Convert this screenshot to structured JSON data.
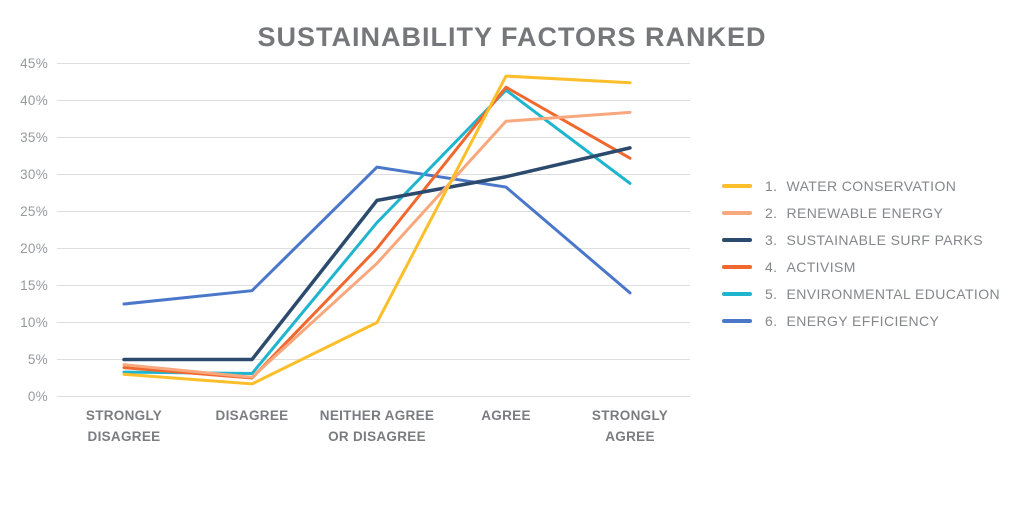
{
  "title": "SUSTAINABILITY FACTORS RANKED",
  "chart_data": {
    "type": "line",
    "title": "SUSTAINABILITY FACTORS RANKED",
    "xlabel": "",
    "ylabel": "",
    "ylim": [
      0,
      45
    ],
    "y_tick_step": 5,
    "y_tick_labels": [
      "0%",
      "5%",
      "10%",
      "15%",
      "20%",
      "25%",
      "30%",
      "35%",
      "40%",
      "45%"
    ],
    "grid": true,
    "legend_position": "right",
    "categories": [
      "STRONGLY DISAGREE",
      "DISAGREE",
      "NEITHER AGREE OR DISAGREE",
      "AGREE",
      "STRONGLY AGREE"
    ],
    "x_tick_lines": [
      [
        "STRONGLY",
        "DISAGREE"
      ],
      [
        "DISAGREE"
      ],
      [
        "NEITHER AGREE",
        "OR DISAGREE"
      ],
      [
        "AGREE"
      ],
      [
        "STRONGLY",
        "AGREE"
      ]
    ],
    "series": [
      {
        "number": "1.",
        "name": "WATER CONSERVATION",
        "color": "#FCBF2B",
        "values": [
          3.0,
          1.7,
          10.0,
          43.3,
          42.4
        ]
      },
      {
        "number": "2.",
        "name": "RENEWABLE ENERGY",
        "color": "#F8A87C",
        "values": [
          4.3,
          2.6,
          18.0,
          37.2,
          38.4
        ]
      },
      {
        "number": "3.",
        "name": "SUSTAINABLE SURF PARKS",
        "color": "#2B4A6E",
        "values": [
          5.0,
          5.0,
          26.5,
          29.7,
          33.6
        ]
      },
      {
        "number": "4.",
        "name": "ACTIVISM",
        "color": "#F1682F",
        "values": [
          3.9,
          2.5,
          20.0,
          41.8,
          32.2
        ]
      },
      {
        "number": "5.",
        "name": "ENVIRONMENTAL EDUCATION",
        "color": "#1FB5CE",
        "values": [
          3.3,
          3.1,
          23.5,
          41.4,
          28.8
        ]
      },
      {
        "number": "6.",
        "name": "ENERGY EFFICIENCY",
        "color": "#4A77C9",
        "values": [
          12.5,
          14.3,
          31.0,
          28.3,
          14.0
        ]
      }
    ]
  },
  "colors": {
    "title_text": "#76777A",
    "x_tick_text": "#7B7C7F",
    "y_tick_text": "#97999D",
    "gridline": "#DDDEDF",
    "background": "#FFFFFF"
  }
}
